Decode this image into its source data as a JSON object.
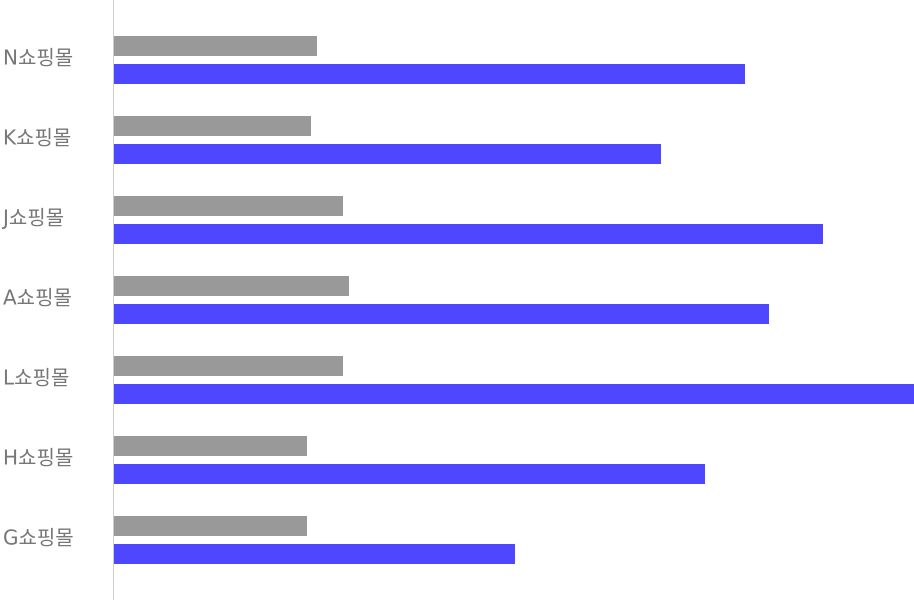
{
  "chart_data": {
    "type": "hbar",
    "categories": [
      "N쇼핑몰",
      "K쇼핑몰",
      "J쇼핑몰",
      "A쇼핑몰",
      "L쇼핑몰",
      "H쇼핑몰",
      "G쇼핑몰"
    ],
    "series": [
      {
        "color": "#999999",
        "values": [
          203,
          197,
          229,
          235,
          229,
          193,
          193
        ]
      },
      {
        "color": "#4f46ff",
        "values": [
          631,
          547,
          709,
          655,
          800,
          591,
          401
        ]
      }
    ],
    "xlim": [
      0,
      800
    ]
  }
}
